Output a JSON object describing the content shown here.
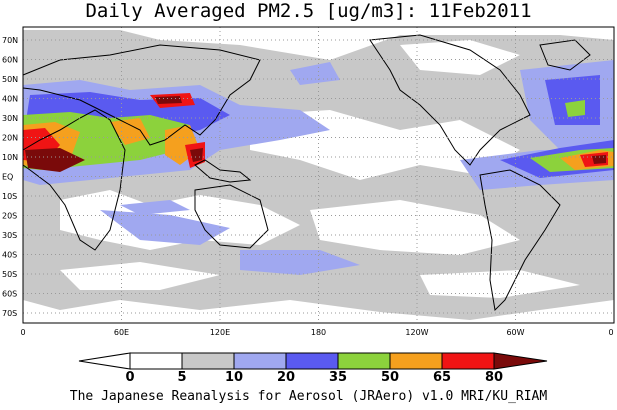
{
  "title": "Daily Averaged PM2.5 [ug/m3]: 11Feb2011",
  "footer": "The Japanese Reanalysis for Aerosol (JRAero) v1.0 MRI/KU_RIAM",
  "lat_labels": [
    "70N",
    "60N",
    "50N",
    "40N",
    "30N",
    "20N",
    "10N",
    "EQ",
    "10S",
    "20S",
    "30S",
    "40S",
    "50S",
    "60S",
    "70S"
  ],
  "lon_labels": [
    "0",
    "60E",
    "120E",
    "180",
    "120W",
    "60W",
    "0"
  ],
  "colorbar": {
    "labels": [
      "0",
      "5",
      "10",
      "20",
      "35",
      "50",
      "65",
      "80"
    ],
    "colors": [
      "#ffffff",
      "#c8c8c8",
      "#a0a8f0",
      "#5a5af0",
      "#8cd23c",
      "#f5a01e",
      "#f01414",
      "#7a0a0a"
    ]
  },
  "colors": {
    "land_outline": "#000000",
    "grid": "#9a9a9a"
  }
}
